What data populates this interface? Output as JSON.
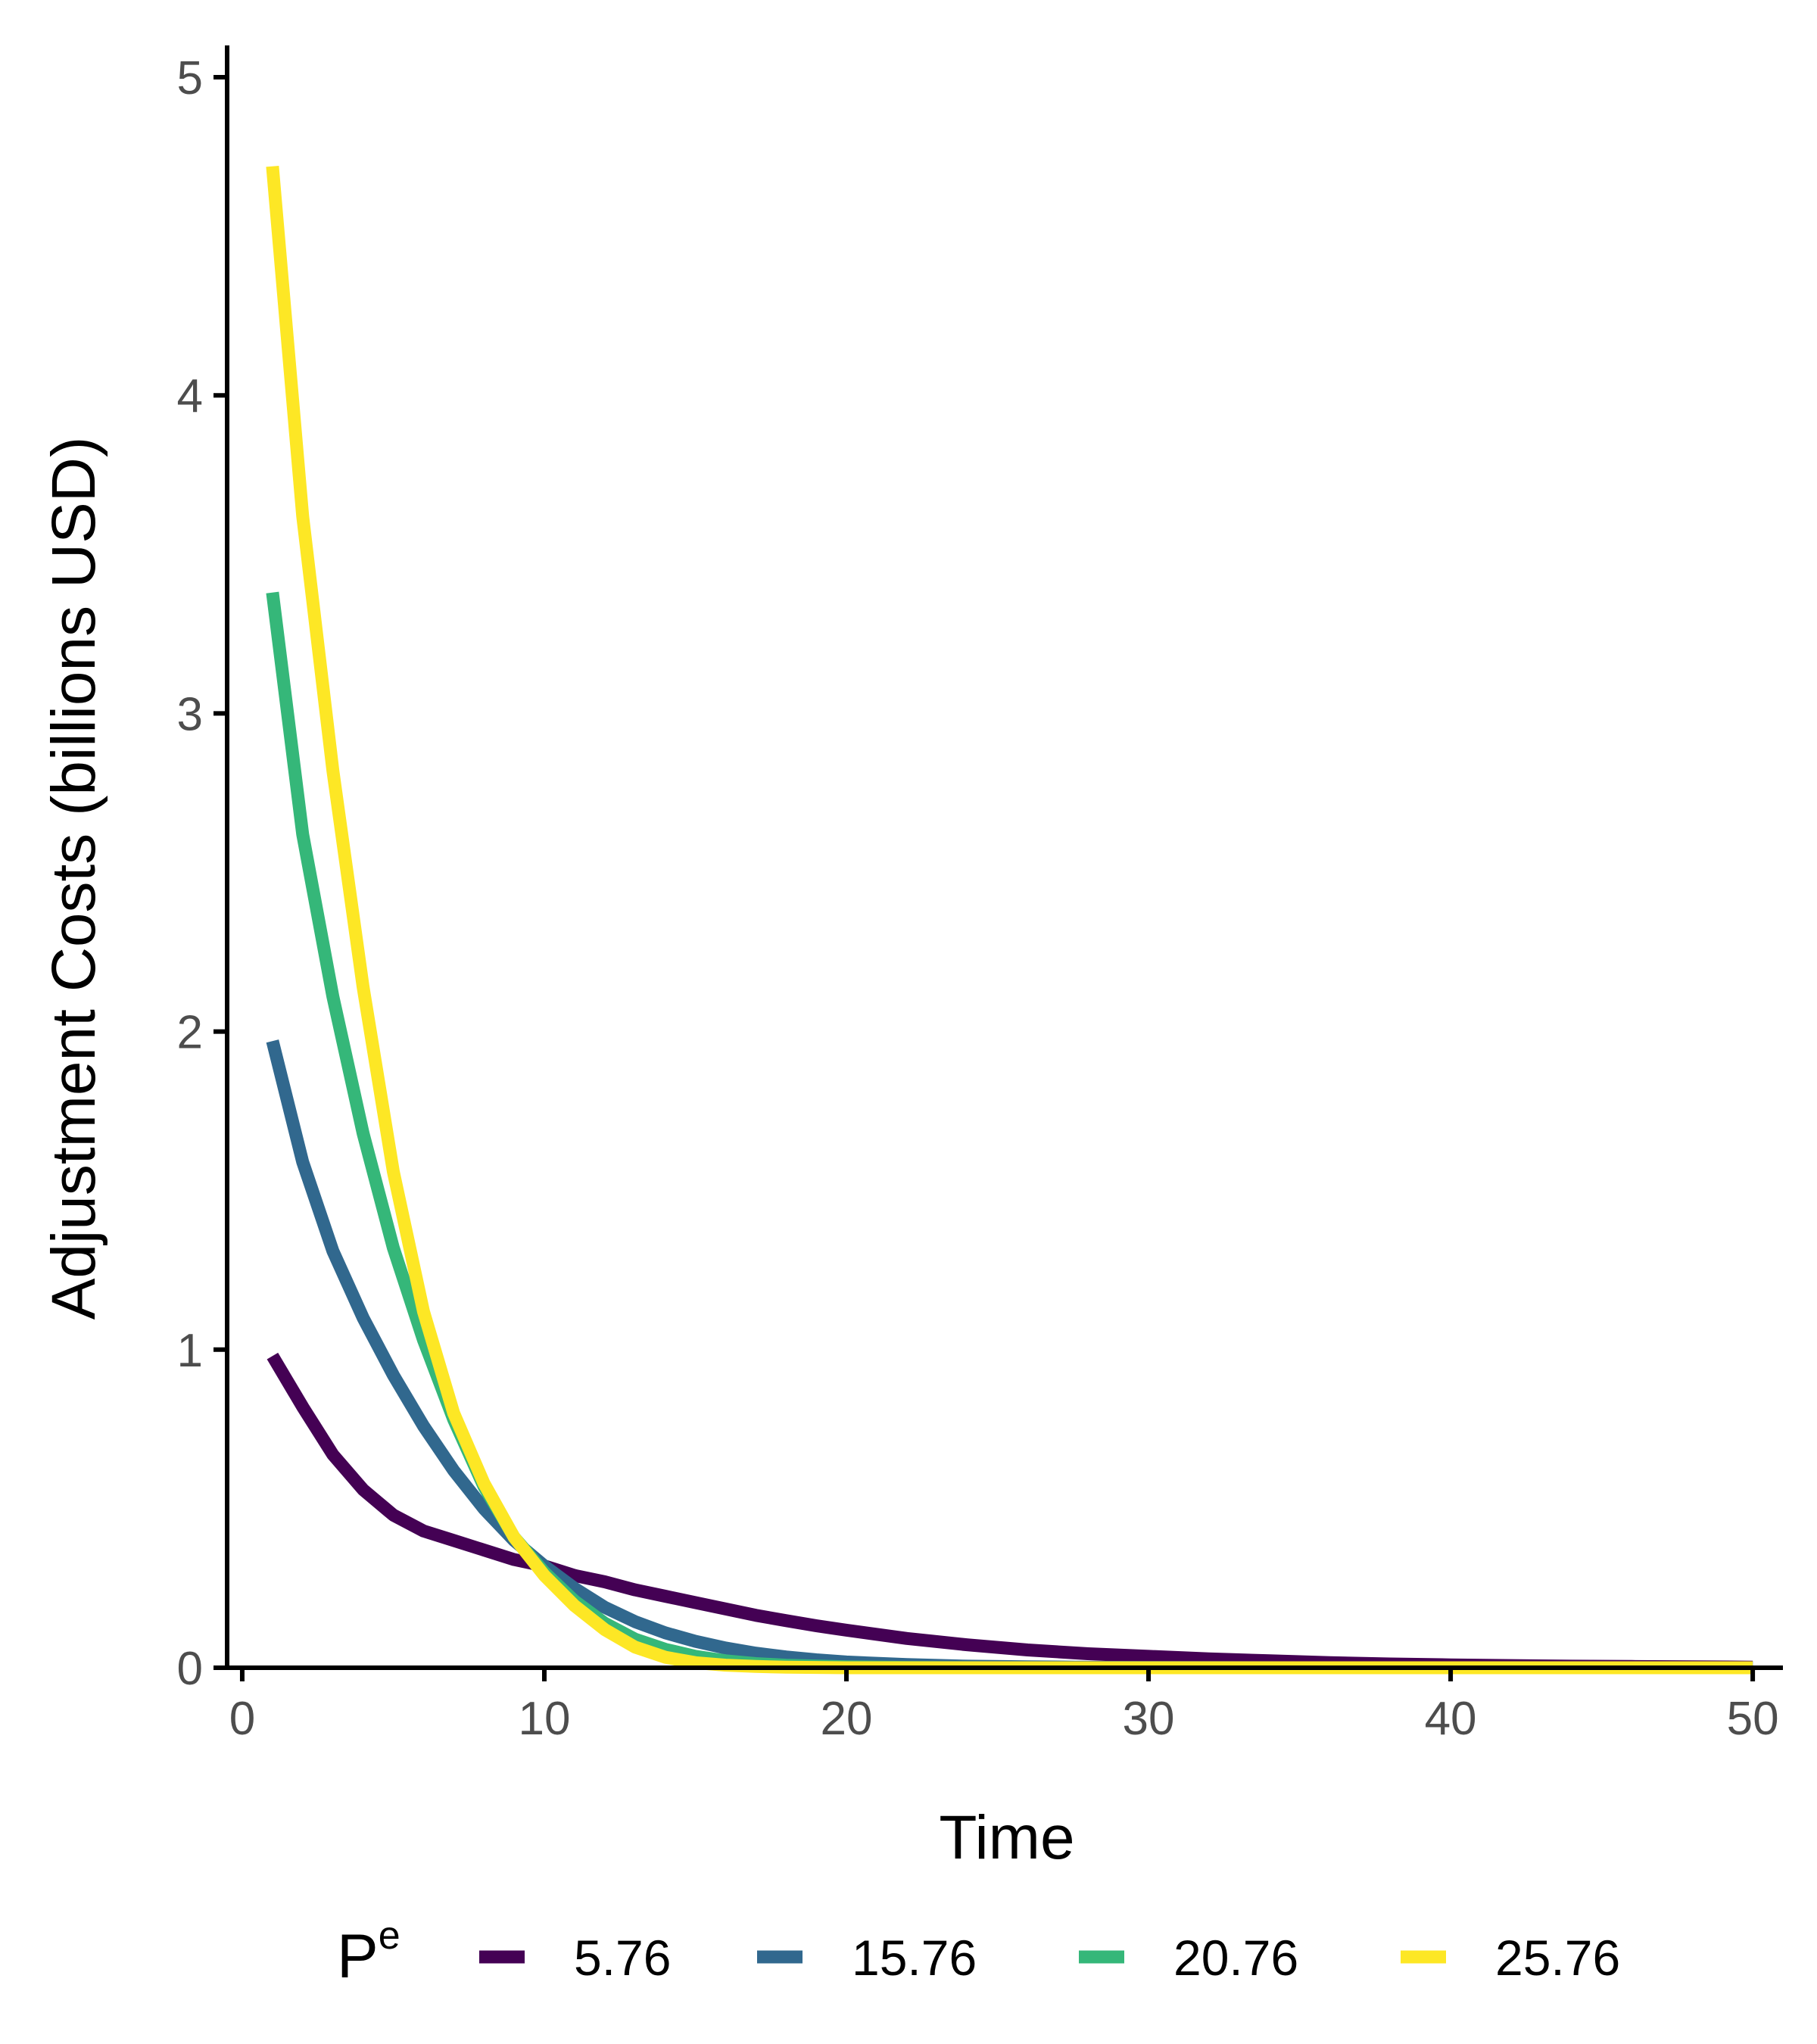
{
  "chart_data": {
    "type": "line",
    "title": "",
    "xlabel": "Time",
    "ylabel": "Adjustment Costs (billions USD)",
    "xlim": [
      -0.5,
      51
    ],
    "ylim": [
      0,
      5.1
    ],
    "xticks": [
      0,
      10,
      20,
      30,
      40,
      50
    ],
    "yticks": [
      0,
      1,
      2,
      3,
      4,
      5
    ],
    "xtick_labels": [
      "0",
      "10",
      "20",
      "30",
      "40",
      "50"
    ],
    "ytick_labels": [
      "0",
      "1",
      "2",
      "3",
      "4",
      "5"
    ],
    "grid": false,
    "legend": {
      "position": "bottom",
      "title": "P",
      "title_superscript": "e"
    },
    "series": [
      {
        "name": "5.76",
        "color": "#440154",
        "x": [
          1,
          2,
          3,
          4,
          5,
          6,
          7,
          8,
          9,
          10,
          11,
          12,
          13,
          14,
          15,
          16,
          17,
          18,
          19,
          20,
          22,
          24,
          26,
          28,
          30,
          32,
          34,
          36,
          38,
          40,
          42,
          44,
          46,
          48,
          50
        ],
        "values": [
          0.98,
          0.82,
          0.67,
          0.56,
          0.48,
          0.43,
          0.4,
          0.37,
          0.34,
          0.32,
          0.29,
          0.27,
          0.245,
          0.225,
          0.205,
          0.185,
          0.165,
          0.148,
          0.132,
          0.118,
          0.092,
          0.072,
          0.056,
          0.044,
          0.036,
          0.028,
          0.022,
          0.016,
          0.012,
          0.009,
          0.007,
          0.005,
          0.004,
          0.003,
          0.002
        ]
      },
      {
        "name": "15.76",
        "color": "#31688e",
        "x": [
          1,
          2,
          3,
          4,
          5,
          6,
          7,
          8,
          9,
          10,
          11,
          12,
          13,
          14,
          15,
          16,
          17,
          18,
          19,
          20,
          22,
          24,
          26,
          28,
          30,
          35,
          40,
          45,
          50
        ],
        "values": [
          1.97,
          1.59,
          1.31,
          1.1,
          0.92,
          0.76,
          0.62,
          0.5,
          0.4,
          0.32,
          0.25,
          0.19,
          0.145,
          0.11,
          0.083,
          0.062,
          0.046,
          0.034,
          0.025,
          0.018,
          0.01,
          0.005,
          0.003,
          0.0015,
          0.001,
          0,
          0,
          0,
          0
        ]
      },
      {
        "name": "20.76",
        "color": "#35b779",
        "x": [
          1,
          2,
          3,
          4,
          5,
          6,
          7,
          8,
          9,
          10,
          11,
          12,
          13,
          14,
          15,
          16,
          17,
          18,
          20,
          22,
          25,
          30,
          35,
          40,
          45,
          50
        ],
        "values": [
          3.38,
          2.62,
          2.11,
          1.68,
          1.32,
          1.03,
          0.78,
          0.57,
          0.41,
          0.3,
          0.21,
          0.14,
          0.09,
          0.058,
          0.036,
          0.022,
          0.013,
          0.008,
          0.003,
          0.001,
          0,
          0,
          0,
          0,
          0,
          0
        ]
      },
      {
        "name": "25.76",
        "color": "#fde725",
        "x": [
          1,
          2,
          3,
          4,
          5,
          6,
          7,
          8,
          9,
          10,
          11,
          12,
          13,
          14,
          15,
          16,
          17,
          18,
          20,
          22,
          25,
          30,
          35,
          40,
          45,
          50
        ],
        "values": [
          4.72,
          3.62,
          2.82,
          2.14,
          1.56,
          1.12,
          0.8,
          0.58,
          0.41,
          0.29,
          0.195,
          0.12,
          0.065,
          0.033,
          0.016,
          0.008,
          0.004,
          0.002,
          0,
          0,
          0,
          0,
          0,
          0,
          0,
          0
        ]
      }
    ]
  }
}
